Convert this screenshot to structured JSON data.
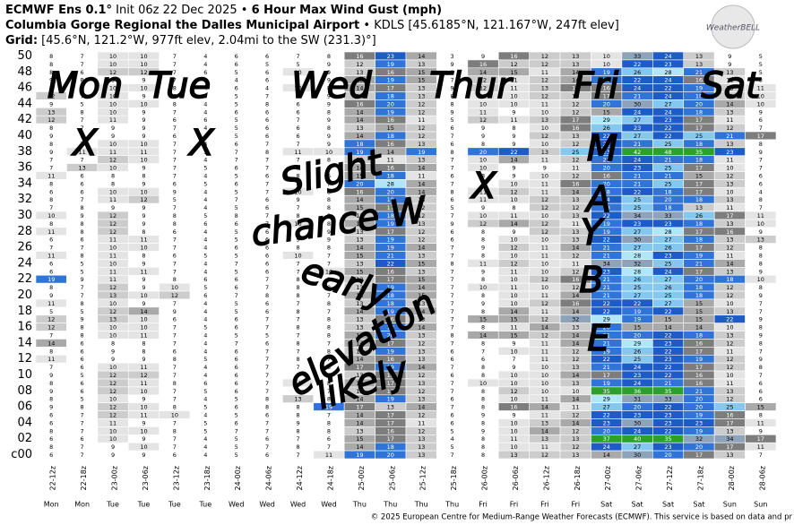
{
  "header": {
    "model": "ECMWF Ens 0.1°",
    "init": " Init 06z 22 Dec 2025 • ",
    "title": "6 Hour Max Wind Gust (mph)",
    "station": "Columbia Gorge Regional the Dalles Municipal Airport",
    "station_info": " • KDLS [45.6185°N, 121.167°W, 247ft elev]",
    "grid_label": "Grid:",
    "grid_info": " [45.6°N, 121.2°W, 977ft elev, 2.04mi to the SW (231.3)°]",
    "logo": "WeatherBELL"
  },
  "footer": "© 2025 European Centre for Medium-Range Weather Forecasts (ECMWF). This service is based on data and pr",
  "annotations": [
    "Mon",
    "Tue",
    "Wed",
    "Thur",
    "Fri",
    "Sat",
    "X",
    "X",
    "Slight",
    "chance W",
    "early",
    "elevation",
    "likely",
    "X",
    "M",
    "A",
    "Y",
    "B",
    "E"
  ],
  "chart_data": {
    "type": "heatmap",
    "x": [
      "22-12z",
      "22-18z",
      "23-00z",
      "23-06z",
      "23-12z",
      "23-18z",
      "24-00z",
      "24-06z",
      "24-12z",
      "24-18z",
      "25-00z",
      "25-06z",
      "25-12z",
      "25-18z",
      "26-00z",
      "26-06z",
      "26-12z",
      "26-18z",
      "27-00z",
      "27-06z",
      "27-12z",
      "27-18z",
      "28-00z",
      "28-06z"
    ],
    "x_days": [
      "Mon",
      "Mon",
      "Tue",
      "Tue",
      "Tue",
      "Tue",
      "Wed",
      "Wed",
      "Wed",
      "Wed",
      "Thu",
      "Thu",
      "Thu",
      "Thu",
      "Fri",
      "Fri",
      "Fri",
      "Fri",
      "Sat",
      "Sat",
      "Sat",
      "Sat",
      "Sun",
      "Sun"
    ],
    "y": [
      "50",
      null,
      "48",
      null,
      "46",
      null,
      "44",
      null,
      "42",
      null,
      "40",
      null,
      "38",
      null,
      "36",
      null,
      "34",
      null,
      "32",
      null,
      "30",
      null,
      "28",
      null,
      "26",
      null,
      "24",
      null,
      "22",
      null,
      "20",
      null,
      "18",
      null,
      "16",
      null,
      "14",
      null,
      "12",
      null,
      "10",
      null,
      "08",
      null,
      "06",
      null,
      "04",
      null,
      "02",
      null,
      "c00"
    ],
    "colorscale": [
      {
        "min": 0,
        "color": "#ffffff"
      },
      {
        "min": 10,
        "color": "#e4e4e4"
      },
      {
        "min": 12,
        "color": "#cccccc"
      },
      {
        "min": 14,
        "color": "#a9a9a9"
      },
      {
        "min": 16,
        "color": "#7d7d7d"
      },
      {
        "min": 18,
        "color": "#2f74d6"
      },
      {
        "min": 22,
        "color": "#1d5cc6"
      },
      {
        "min": 25,
        "color": "#84c8f0"
      },
      {
        "min": 28,
        "color": "#b1e6f8"
      },
      {
        "min": 30,
        "color": "#8ea3ba"
      },
      {
        "min": 35,
        "color": "#2ca02c"
      }
    ],
    "values": [
      [
        8,
        7,
        10,
        10,
        7,
        4,
        6,
        6,
        7,
        8,
        16,
        23,
        14,
        3,
        9,
        16,
        12,
        13,
        10,
        33,
        24,
        13,
        9,
        5
      ],
      [
        8,
        7,
        10,
        10,
        7,
        4,
        6,
        5,
        5,
        9,
        12,
        19,
        13,
        9,
        16,
        12,
        12,
        13,
        10,
        22,
        23,
        13,
        9,
        5
      ],
      [
        8,
        6,
        12,
        12,
        7,
        6,
        5,
        6,
        10,
        9,
        13,
        16,
        15,
        9,
        14,
        15,
        11,
        14,
        19,
        26,
        28,
        21,
        13,
        5
      ],
      [
        9,
        8,
        9,
        9,
        7,
        3,
        4,
        6,
        6,
        9,
        15,
        19,
        15,
        7,
        12,
        11,
        12,
        14,
        18,
        22,
        24,
        16,
        11,
        8
      ],
      [
        8,
        7,
        10,
        10,
        8,
        4,
        6,
        4,
        10,
        8,
        14,
        17,
        13,
        9,
        12,
        11,
        13,
        17,
        16,
        24,
        22,
        19,
        13,
        11
      ],
      [
        12,
        7,
        10,
        9,
        6,
        5,
        5,
        7,
        8,
        9,
        13,
        18,
        13,
        8,
        11,
        10,
        12,
        13,
        17,
        21,
        24,
        18,
        12,
        10
      ],
      [
        9,
        5,
        10,
        10,
        8,
        4,
        5,
        8,
        6,
        9,
        16,
        20,
        12,
        8,
        10,
        10,
        11,
        12,
        20,
        30,
        27,
        20,
        14,
        10
      ],
      [
        13,
        8,
        10,
        9,
        7,
        4,
        6,
        6,
        6,
        8,
        14,
        19,
        12,
        9,
        11,
        9,
        10,
        12,
        15,
        24,
        24,
        18,
        13,
        9
      ],
      [
        12,
        7,
        11,
        9,
        6,
        6,
        5,
        6,
        7,
        9,
        14,
        16,
        11,
        5,
        12,
        11,
        13,
        17,
        29,
        27,
        23,
        17,
        11,
        6
      ],
      [
        8,
        7,
        9,
        9,
        7,
        4,
        5,
        6,
        6,
        8,
        13,
        15,
        12,
        6,
        9,
        8,
        10,
        16,
        26,
        23,
        22,
        17,
        12,
        7
      ],
      [
        9,
        7,
        9,
        9,
        6,
        4,
        5,
        6,
        6,
        9,
        14,
        18,
        12,
        7,
        9,
        9,
        12,
        13,
        22,
        27,
        22,
        25,
        21,
        17
      ],
      [
        8,
        7,
        10,
        10,
        7,
        4,
        6,
        7,
        7,
        9,
        18,
        16,
        13,
        6,
        8,
        9,
        10,
        12,
        22,
        21,
        25,
        18,
        13,
        8
      ],
      [
        9,
        11,
        11,
        11,
        7,
        5,
        7,
        8,
        11,
        10,
        19,
        14,
        19,
        8,
        20,
        22,
        13,
        25,
        23,
        42,
        48,
        35,
        23,
        9
      ],
      [
        7,
        7,
        12,
        10,
        7,
        4,
        7,
        7,
        7,
        8,
        13,
        11,
        13,
        7,
        10,
        14,
        11,
        12,
        21,
        24,
        21,
        18,
        11,
        7
      ],
      [
        7,
        13,
        10,
        9,
        7,
        5,
        6,
        7,
        8,
        6,
        14,
        16,
        14,
        7,
        10,
        9,
        9,
        11,
        20,
        23,
        25,
        17,
        10,
        7
      ],
      [
        11,
        6,
        8,
        8,
        7,
        4,
        5,
        6,
        8,
        6,
        15,
        18,
        11,
        6,
        8,
        9,
        10,
        12,
        16,
        21,
        21,
        15,
        12,
        6
      ],
      [
        8,
        6,
        8,
        9,
        6,
        5,
        6,
        7,
        8,
        7,
        20,
        28,
        14,
        7,
        9,
        10,
        11,
        16,
        20,
        21,
        25,
        17,
        13,
        6
      ],
      [
        6,
        6,
        10,
        10,
        9,
        4,
        5,
        7,
        10,
        8,
        16,
        20,
        14,
        8,
        11,
        12,
        11,
        14,
        18,
        22,
        18,
        17,
        10,
        4
      ],
      [
        8,
        7,
        11,
        12,
        5,
        4,
        7,
        6,
        9,
        8,
        14,
        19,
        13,
        6,
        11,
        10,
        12,
        13,
        24,
        25,
        20,
        18,
        13,
        8
      ],
      [
        7,
        8,
        9,
        9,
        7,
        4,
        5,
        6,
        7,
        8,
        15,
        17,
        12,
        5,
        9,
        8,
        12,
        12,
        18,
        25,
        18,
        13,
        11,
        7
      ],
      [
        10,
        9,
        12,
        9,
        8,
        5,
        8,
        7,
        8,
        8,
        13,
        18,
        12,
        7,
        10,
        11,
        10,
        13,
        22,
        34,
        33,
        26,
        17,
        11
      ],
      [
        8,
        8,
        12,
        9,
        8,
        6,
        6,
        7,
        10,
        8,
        14,
        19,
        13,
        9,
        12,
        14,
        12,
        11,
        19,
        23,
        23,
        18,
        13,
        10
      ],
      [
        11,
        8,
        12,
        8,
        6,
        4,
        5,
        6,
        8,
        9,
        13,
        17,
        12,
        6,
        8,
        9,
        12,
        13,
        19,
        27,
        28,
        17,
        16,
        9
      ],
      [
        6,
        6,
        11,
        11,
        7,
        4,
        5,
        6,
        9,
        9,
        13,
        19,
        12,
        6,
        8,
        10,
        10,
        13,
        22,
        30,
        27,
        18,
        13,
        13
      ],
      [
        7,
        7,
        10,
        10,
        7,
        4,
        6,
        6,
        8,
        8,
        14,
        19,
        14,
        7,
        9,
        12,
        11,
        14,
        21,
        27,
        26,
        17,
        12,
        8
      ],
      [
        11,
        8,
        11,
        8,
        6,
        5,
        5,
        6,
        10,
        7,
        15,
        21,
        13,
        7,
        8,
        10,
        11,
        12,
        21,
        28,
        23,
        19,
        11,
        8
      ],
      [
        6,
        5,
        10,
        9,
        7,
        4,
        7,
        6,
        7,
        7,
        13,
        22,
        15,
        8,
        11,
        12,
        10,
        11,
        34,
        32,
        25,
        21,
        14,
        8
      ],
      [
        6,
        5,
        11,
        11,
        7,
        4,
        5,
        6,
        7,
        10,
        15,
        16,
        13,
        7,
        9,
        11,
        10,
        12,
        23,
        28,
        24,
        17,
        13,
        9
      ],
      [
        19,
        9,
        11,
        9,
        8,
        6,
        6,
        7,
        8,
        8,
        12,
        17,
        15,
        7,
        8,
        10,
        12,
        16,
        21,
        26,
        27,
        20,
        18,
        10
      ],
      [
        8,
        7,
        12,
        9,
        10,
        5,
        6,
        7,
        8,
        8,
        13,
        19,
        14,
        7,
        10,
        11,
        10,
        12,
        21,
        25,
        26,
        18,
        12,
        8
      ],
      [
        9,
        7,
        13,
        10,
        12,
        6,
        7,
        8,
        8,
        7,
        14,
        18,
        15,
        7,
        8,
        10,
        11,
        14,
        21,
        27,
        25,
        18,
        12,
        9
      ],
      [
        11,
        8,
        10,
        9,
        7,
        4,
        5,
        6,
        7,
        8,
        13,
        18,
        13,
        7,
        9,
        10,
        12,
        16,
        22,
        22,
        27,
        15,
        10,
        7
      ],
      [
        5,
        5,
        12,
        14,
        9,
        4,
        5,
        6,
        8,
        7,
        14,
        19,
        14,
        7,
        8,
        14,
        11,
        14,
        22,
        19,
        22,
        15,
        13,
        7
      ],
      [
        12,
        9,
        13,
        10,
        6,
        4,
        6,
        7,
        7,
        8,
        13,
        16,
        13,
        7,
        15,
        15,
        12,
        32,
        29,
        19,
        15,
        15,
        22,
        9
      ],
      [
        12,
        8,
        10,
        10,
        7,
        5,
        6,
        7,
        8,
        8,
        13,
        18,
        14,
        7,
        8,
        11,
        14,
        13,
        20,
        15,
        14,
        14,
        10,
        8
      ],
      [
        7,
        8,
        10,
        11,
        7,
        4,
        5,
        5,
        7,
        8,
        14,
        20,
        13,
        8,
        14,
        15,
        12,
        14,
        21,
        20,
        22,
        18,
        13,
        9
      ],
      [
        14,
        6,
        8,
        8,
        7,
        4,
        7,
        6,
        8,
        7,
        14,
        17,
        12,
        7,
        8,
        9,
        11,
        14,
        21,
        29,
        23,
        16,
        12,
        8
      ],
      [
        8,
        6,
        9,
        8,
        6,
        4,
        6,
        7,
        7,
        8,
        13,
        19,
        13,
        6,
        7,
        10,
        11,
        12,
        19,
        26,
        22,
        17,
        11,
        7
      ],
      [
        11,
        6,
        9,
        9,
        8,
        5,
        6,
        7,
        8,
        7,
        14,
        16,
        13,
        6,
        6,
        7,
        11,
        12,
        22,
        25,
        23,
        19,
        12,
        9
      ],
      [
        7,
        6,
        10,
        11,
        7,
        4,
        6,
        7,
        7,
        8,
        17,
        19,
        14,
        7,
        8,
        9,
        10,
        13,
        21,
        24,
        22,
        17,
        12,
        8
      ],
      [
        9,
        5,
        12,
        12,
        7,
        4,
        6,
        7,
        7,
        7,
        13,
        16,
        12,
        6,
        8,
        10,
        10,
        14,
        17,
        23,
        22,
        16,
        10,
        7
      ],
      [
        8,
        6,
        12,
        11,
        8,
        6,
        6,
        7,
        11,
        8,
        14,
        17,
        13,
        7,
        10,
        10,
        10,
        13,
        19,
        24,
        21,
        16,
        11,
        6
      ],
      [
        9,
        6,
        12,
        10,
        7,
        5,
        6,
        7,
        7,
        7,
        13,
        17,
        12,
        7,
        8,
        12,
        10,
        10,
        35,
        36,
        35,
        21,
        13,
        6
      ],
      [
        8,
        5,
        10,
        9,
        7,
        4,
        5,
        8,
        13,
        8,
        14,
        19,
        13,
        6,
        8,
        10,
        11,
        14,
        29,
        31,
        33,
        20,
        12,
        6
      ],
      [
        9,
        8,
        12,
        10,
        8,
        5,
        6,
        8,
        8,
        19,
        17,
        13,
        14,
        7,
        8,
        16,
        14,
        11,
        27,
        20,
        22,
        20,
        25,
        15
      ],
      [
        6,
        7,
        12,
        11,
        10,
        4,
        5,
        6,
        8,
        7,
        14,
        17,
        12,
        6,
        9,
        9,
        11,
        12,
        22,
        23,
        23,
        19,
        16,
        8
      ],
      [
        6,
        7,
        11,
        9,
        7,
        5,
        6,
        7,
        9,
        8,
        14,
        17,
        11,
        6,
        8,
        10,
        13,
        14,
        23,
        30,
        23,
        23,
        17,
        11
      ],
      [
        8,
        7,
        10,
        10,
        8,
        5,
        7,
        7,
        8,
        8,
        13,
        16,
        12,
        5,
        9,
        10,
        14,
        12,
        20,
        24,
        22,
        19,
        13,
        9
      ],
      [
        6,
        6,
        10,
        9,
        7,
        4,
        5,
        6,
        7,
        6,
        15,
        17,
        13,
        4,
        8,
        11,
        13,
        13,
        37,
        40,
        35,
        32,
        34,
        17
      ],
      [
        8,
        7,
        9,
        10,
        7,
        4,
        5,
        7,
        8,
        7,
        14,
        18,
        13,
        5,
        8,
        10,
        11,
        12,
        24,
        27,
        23,
        20,
        17,
        11
      ],
      [
        6,
        7,
        9,
        9,
        6,
        4,
        5,
        6,
        7,
        11,
        19,
        20,
        13,
        7,
        8,
        13,
        12,
        13,
        14,
        30,
        20,
        17,
        13,
        7
      ]
    ]
  }
}
